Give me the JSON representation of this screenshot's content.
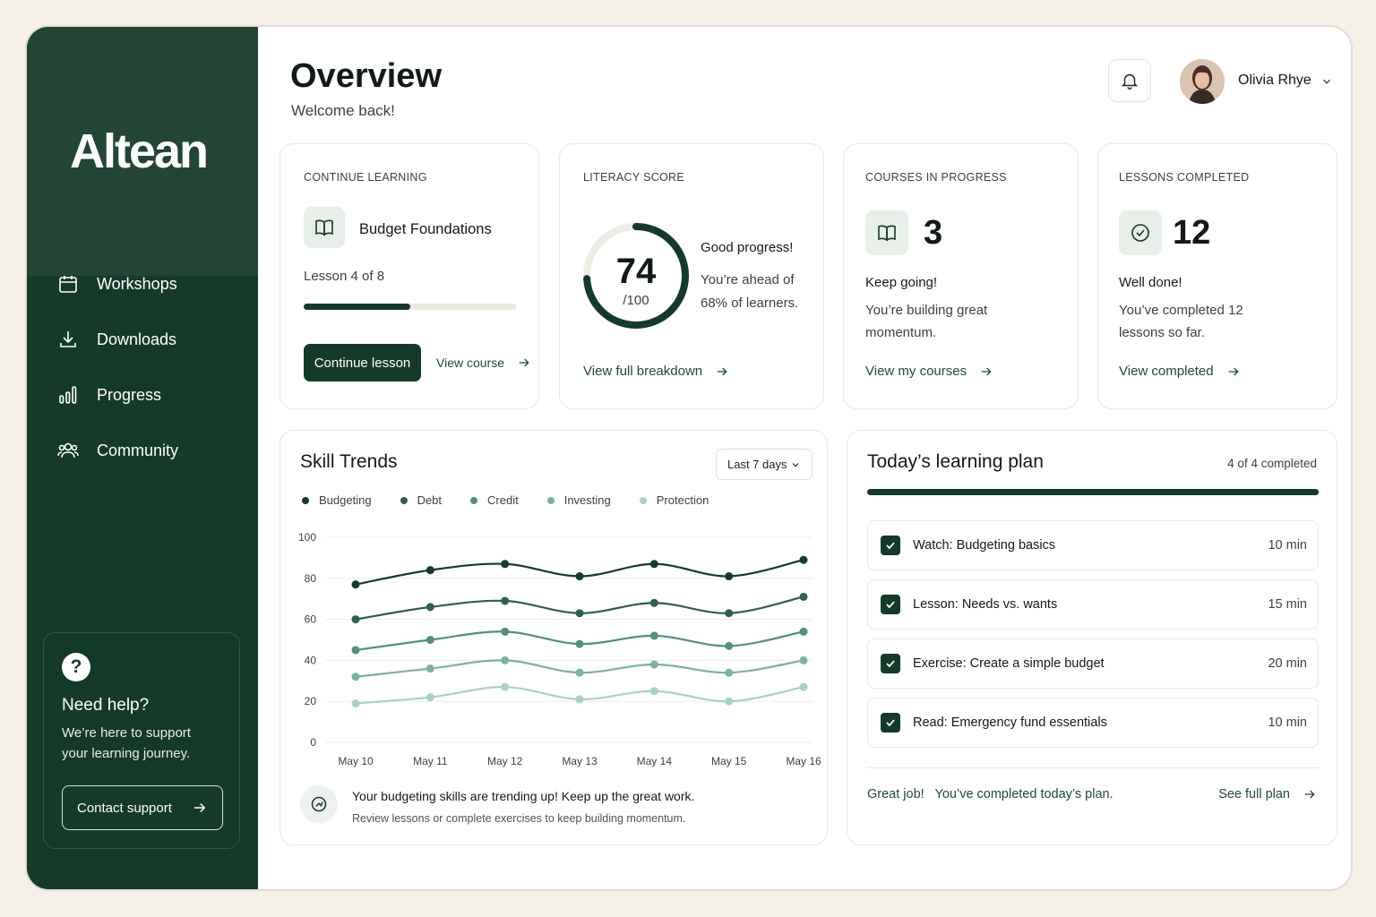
{
  "brand": {
    "logo": "Altean"
  },
  "sidebar": {
    "items": [
      {
        "label": "Workshops",
        "icon": "calendar-icon"
      },
      {
        "label": "Downloads",
        "icon": "download-icon"
      },
      {
        "label": "Progress",
        "icon": "bar-chart-icon"
      },
      {
        "label": "Community",
        "icon": "users-icon"
      }
    ],
    "help": {
      "title": "Need help?",
      "text": "We’re here to support your learning journey.",
      "button": "Contact support"
    }
  },
  "header": {
    "title": "Overview",
    "subtitle": "Welcome back!",
    "user_name": "Olivia Rhye"
  },
  "continue_learning": {
    "label": "CONTINUE LEARNING",
    "course": "Budget Foundations",
    "lesson": "Lesson 4 of 8",
    "progress": 0.5,
    "primary_button": "Continue lesson",
    "secondary_link": "View course"
  },
  "literacy": {
    "label": "LITERACY SCORE",
    "score": "74",
    "max": "/100",
    "score_value": 74,
    "heading": "Good progress!",
    "text_line1": "You’re ahead of",
    "text_line2": "68% of learners.",
    "link": "View full breakdown"
  },
  "courses": {
    "label": "COURSES IN PROGRESS",
    "count": "3",
    "heading": "Keep going!",
    "text_line1": "You’re building great",
    "text_line2": "momentum.",
    "link": "View my courses"
  },
  "lessons": {
    "label": "LESSONS COMPLETED",
    "count": "12",
    "heading": "Well done!",
    "text_line1": "You’ve completed 12",
    "text_line2": "lessons so far.",
    "link": "View completed"
  },
  "skill_trends": {
    "title": "Skill Trends",
    "range": "Last 7 days",
    "insight_title": "Your budgeting skills are trending up! Keep up the great work.",
    "insight_sub": "Review lessons or complete exercises to keep building momentum."
  },
  "chart_data": {
    "type": "line",
    "x": [
      "May 10",
      "May 11",
      "May 12",
      "May 13",
      "May 14",
      "May 15",
      "May 16"
    ],
    "yticks": [
      0,
      20,
      40,
      60,
      80,
      100
    ],
    "ylim": [
      0,
      100
    ],
    "grid": true,
    "legend_position": "top-left",
    "series": [
      {
        "name": "Budgeting",
        "color": "#143a2a",
        "values": [
          77,
          84,
          87,
          81,
          87,
          81,
          89
        ]
      },
      {
        "name": "Debt",
        "color": "#2d6148",
        "values": [
          60,
          66,
          69,
          63,
          68,
          63,
          71
        ]
      },
      {
        "name": "Credit",
        "color": "#4f9274",
        "values": [
          45,
          50,
          54,
          48,
          52,
          47,
          54
        ]
      },
      {
        "name": "Investing",
        "color": "#79b399",
        "values": [
          32,
          36,
          40,
          34,
          38,
          34,
          40
        ]
      },
      {
        "name": "Protection",
        "color": "#a8d2bf",
        "values": [
          19,
          22,
          27,
          21,
          25,
          20,
          27
        ]
      }
    ]
  },
  "plan": {
    "title": "Today’s learning plan",
    "status": "4 of 4 completed",
    "progress": 1.0,
    "items": [
      {
        "label": "Watch: Budgeting basics",
        "time": "10 min"
      },
      {
        "label": "Lesson: Needs vs. wants",
        "time": "15 min"
      },
      {
        "label": "Exercise: Create a simple budget",
        "time": "20 min"
      },
      {
        "label": "Read: Emergency fund essentials",
        "time": "10 min"
      }
    ],
    "footer_a": "Great job!",
    "footer_b": "You’ve completed today’s plan.",
    "footer_link": "See full plan"
  }
}
